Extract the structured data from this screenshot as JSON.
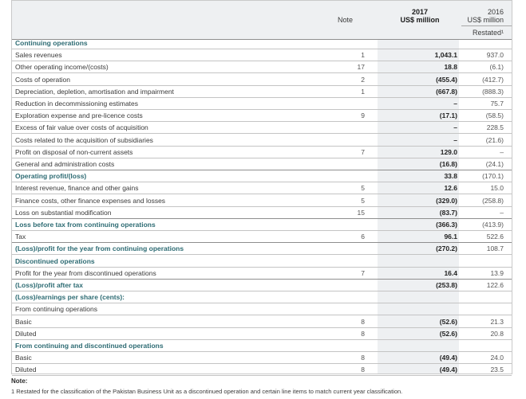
{
  "header": {
    "note": "Note",
    "year_current": "2017",
    "unit_current": "US$ million",
    "year_prior": "2016",
    "unit_prior": "US$ million",
    "restated": "Restated¹"
  },
  "rows": [
    {
      "label": "Continuing operations",
      "note": "",
      "v2017": "",
      "v2016": "",
      "bold": true
    },
    {
      "label": "Sales revenues",
      "note": "1",
      "v2017": "1,043.1",
      "v2016": "937.0"
    },
    {
      "label": "Other operating income/(costs)",
      "note": "17",
      "v2017": "18.8",
      "v2016": "(6.1)"
    },
    {
      "label": "Costs of operation",
      "note": "2",
      "v2017": "(455.4)",
      "v2016": "(412.7)"
    },
    {
      "label": "Depreciation, depletion, amortisation and impairment",
      "note": "1",
      "v2017": "(667.8)",
      "v2016": "(888.3)"
    },
    {
      "label": "Reduction in decommissioning estimates",
      "note": "",
      "v2017": "–",
      "v2016": "75.7"
    },
    {
      "label": "Exploration expense and pre-licence costs",
      "note": "9",
      "v2017": "(17.1)",
      "v2016": "(58.5)"
    },
    {
      "label": "Excess of fair value over costs of acquisition",
      "note": "",
      "v2017": "–",
      "v2016": "228.5"
    },
    {
      "label": "Costs related to the acquisition of subsidiaries",
      "note": "",
      "v2017": "–",
      "v2016": "(21.6)"
    },
    {
      "label": "Profit on disposal of non-current assets",
      "note": "7",
      "v2017": "129.0",
      "v2016": "–"
    },
    {
      "label": "General and administration costs",
      "note": "",
      "v2017": "(16.8)",
      "v2016": "(24.1)",
      "rule": "dark"
    },
    {
      "label": "Operating profit/(loss)",
      "note": "",
      "v2017": "33.8",
      "v2016": "(170.1)",
      "bold": true
    },
    {
      "label": "Interest revenue, finance and other gains",
      "note": "5",
      "v2017": "12.6",
      "v2016": "15.0"
    },
    {
      "label": "Finance costs, other finance expenses and losses",
      "note": "5",
      "v2017": "(329.0)",
      "v2016": "(258.8)"
    },
    {
      "label": "Loss on substantial modification",
      "note": "15",
      "v2017": "(83.7)",
      "v2016": "–",
      "rule": "dark"
    },
    {
      "label": "Loss before tax from continuing operations",
      "note": "",
      "v2017": "(366.3)",
      "v2016": "(413.9)",
      "bold": true
    },
    {
      "label": "Tax",
      "note": "6",
      "v2017": "96.1",
      "v2016": "522.6",
      "rule": "dark"
    },
    {
      "label": "(Loss)/profit for the year from continuing operations",
      "note": "",
      "v2017": "(270.2)",
      "v2016": "108.7",
      "bold": true
    },
    {
      "label": "Discontinued operations",
      "note": "",
      "v2017": "",
      "v2016": "",
      "bold": true
    },
    {
      "label": "Profit for the year from discontinued operations",
      "note": "7",
      "v2017": "16.4",
      "v2016": "13.9",
      "rule": "dark"
    },
    {
      "label": "(Loss)/profit after tax",
      "note": "",
      "v2017": "(253.8)",
      "v2016": "122.6",
      "bold": true
    },
    {
      "label": "(Loss)/earnings per share (cents):",
      "note": "",
      "v2017": "",
      "v2016": "",
      "bold": true
    },
    {
      "label": "From continuing operations",
      "note": "",
      "v2017": "",
      "v2016": ""
    },
    {
      "label": "Basic",
      "note": "8",
      "v2017": "(52.6)",
      "v2016": "21.3"
    },
    {
      "label": "Diluted",
      "note": "8",
      "v2017": "(52.6)",
      "v2016": "20.8"
    },
    {
      "label": "From continuing and discontinued operations",
      "note": "",
      "v2017": "",
      "v2016": "",
      "bold": true
    },
    {
      "label": "Basic",
      "note": "8",
      "v2017": "(49.4)",
      "v2016": "24.0"
    },
    {
      "label": "Diluted",
      "note": "8",
      "v2017": "(49.4)",
      "v2016": "23.5"
    }
  ],
  "footnote": {
    "title": "Note:",
    "text": "1  Restated for the classification of the Pakistan Business Unit as a discontinued operation and certain line items to match current year classification."
  }
}
